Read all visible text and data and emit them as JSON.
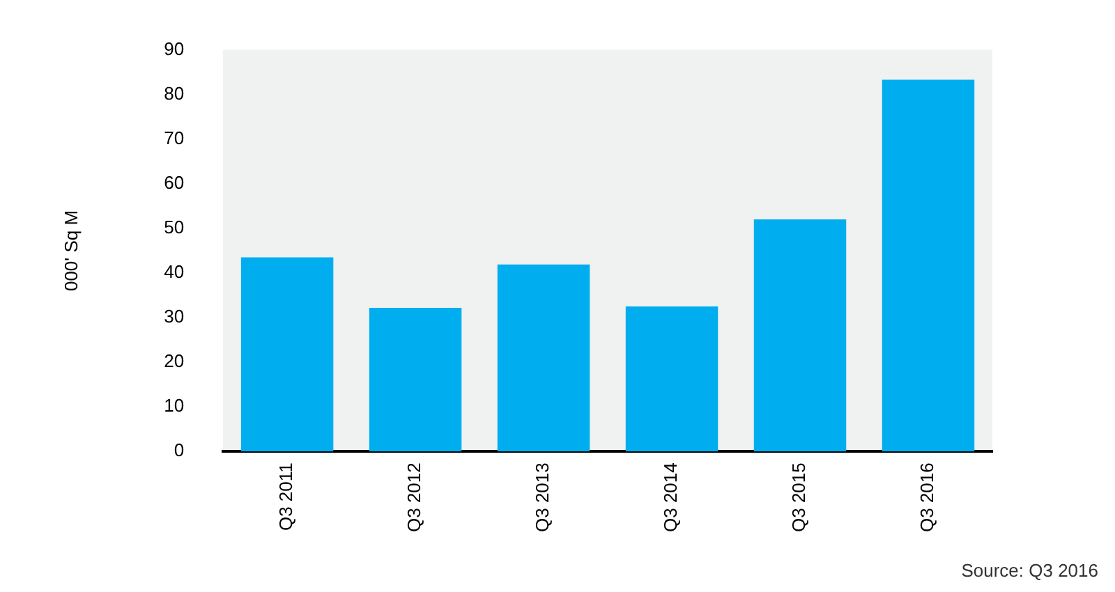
{
  "chart_data": {
    "type": "bar",
    "ylabel": "000' Sq M",
    "categories": [
      "Q3 2011",
      "Q3 2012",
      "Q3 2013",
      "Q3 2014",
      "Q3 2015",
      "Q3 2016"
    ],
    "values": [
      43.5,
      32.2,
      41.9,
      32.5,
      52.0,
      83.3
    ],
    "color": "#00aeef",
    "ylim": [
      0,
      90
    ],
    "yticks": [
      0,
      10,
      20,
      30,
      40,
      50,
      60,
      70,
      80,
      90
    ],
    "grid": false,
    "legend": false,
    "annotations": [
      "Source: Q3 2016"
    ]
  }
}
